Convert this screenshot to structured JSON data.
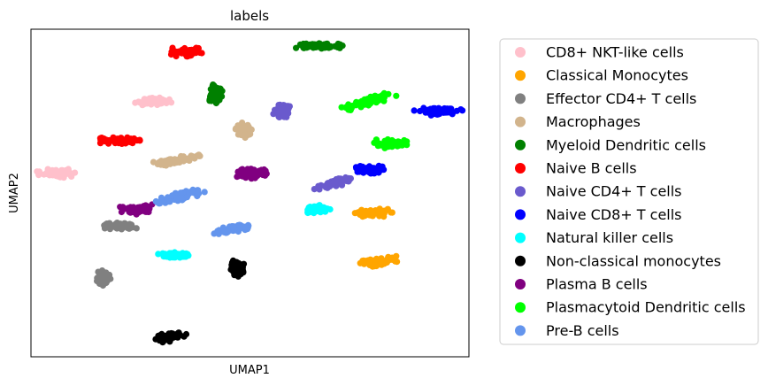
{
  "chart_data": {
    "type": "scatter",
    "title": "labels",
    "xlabel": "UMAP1",
    "ylabel": "UMAP2",
    "xlim": [
      0,
      100
    ],
    "ylim": [
      0,
      100
    ],
    "grid": false,
    "ticks_visible": false,
    "legend_position": "outside-right",
    "series": [
      {
        "name": "CD8+ NKT-like cells",
        "color": "#ffc0cb",
        "clusters": [
          {
            "x": 28,
            "y": 78,
            "sx": 4.2,
            "sy": 1.2,
            "rot": 0
          },
          {
            "x": 6,
            "y": 56,
            "sx": 4.6,
            "sy": 1.3,
            "rot": 0
          }
        ]
      },
      {
        "name": "Classical Monocytes",
        "color": "#ffa500",
        "clusters": [
          {
            "x": 78.5,
            "y": 44,
            "sx": 4.5,
            "sy": 1.2,
            "rot": 0
          },
          {
            "x": 79,
            "y": 29,
            "sx": 5,
            "sy": 1.4,
            "rot": -5
          }
        ]
      },
      {
        "name": "Effector CD4+ T cells",
        "color": "#808080",
        "clusters": [
          {
            "x": 19.5,
            "y": 40,
            "sx": 4.6,
            "sy": 1.2,
            "rot": 0
          },
          {
            "x": 16.5,
            "y": 24,
            "sx": 1.6,
            "sy": 2.6,
            "rot": 20
          }
        ]
      },
      {
        "name": "Macrophages",
        "color": "#d2b48c",
        "clusters": [
          {
            "x": 48.5,
            "y": 69,
            "sx": 1.8,
            "sy": 2.3,
            "rot": 15
          },
          {
            "x": 33.5,
            "y": 60,
            "sx": 5.5,
            "sy": 1.3,
            "rot": -10
          }
        ]
      },
      {
        "name": "Myeloid Dendritic cells",
        "color": "#008000",
        "clusters": [
          {
            "x": 66,
            "y": 95,
            "sx": 6.5,
            "sy": 1.1,
            "rot": 0
          },
          {
            "x": 42,
            "y": 80,
            "sx": 1.6,
            "sy": 3.2,
            "rot": 20
          }
        ]
      },
      {
        "name": "Naive B cells",
        "color": "#ff0000",
        "clusters": [
          {
            "x": 35.5,
            "y": 93,
            "sx": 4.3,
            "sy": 1.3,
            "rot": 0
          },
          {
            "x": 20.5,
            "y": 66,
            "sx": 5,
            "sy": 1.1,
            "rot": 0
          }
        ]
      },
      {
        "name": "Naive CD4+ T cells",
        "color": "#6a5acd",
        "clusters": [
          {
            "x": 57.5,
            "y": 75,
            "sx": 1.8,
            "sy": 2.5,
            "rot": 20
          },
          {
            "x": 69,
            "y": 53,
            "sx": 4.5,
            "sy": 1.3,
            "rot": -15
          }
        ]
      },
      {
        "name": "Naive CD8+ T cells",
        "color": "#0000ff",
        "clusters": [
          {
            "x": 93,
            "y": 75,
            "sx": 5.5,
            "sy": 1.3,
            "rot": 0
          },
          {
            "x": 77,
            "y": 57,
            "sx": 3.8,
            "sy": 1.4,
            "rot": 0
          }
        ]
      },
      {
        "name": "Natural killer  cells",
        "color": "#00ffff",
        "clusters": [
          {
            "x": 65.5,
            "y": 45,
            "sx": 2.8,
            "sy": 1.3,
            "rot": 0
          },
          {
            "x": 33,
            "y": 31,
            "sx": 4.3,
            "sy": 1,
            "rot": 0
          }
        ]
      },
      {
        "name": "Non-classical monocytes",
        "color": "#000000",
        "clusters": [
          {
            "x": 47,
            "y": 27,
            "sx": 1.8,
            "sy": 2.5,
            "rot": 15
          },
          {
            "x": 31.5,
            "y": 6,
            "sx": 4,
            "sy": 1.4,
            "rot": -10
          }
        ]
      },
      {
        "name": "Plasma B cells",
        "color": "#800080",
        "clusters": [
          {
            "x": 50.5,
            "y": 56,
            "sx": 4,
            "sy": 1.7,
            "rot": 0
          },
          {
            "x": 24,
            "y": 45,
            "sx": 3.7,
            "sy": 1.5,
            "rot": 0
          }
        ]
      },
      {
        "name": "Plasmacytoid Dendritic cells",
        "color": "#00ff00",
        "clusters": [
          {
            "x": 77,
            "y": 78,
            "sx": 6.5,
            "sy": 1.3,
            "rot": -15
          },
          {
            "x": 82,
            "y": 65,
            "sx": 3.8,
            "sy": 1.4,
            "rot": 0
          }
        ]
      },
      {
        "name": "Pre-B cells",
        "color": "#6495ed",
        "clusters": [
          {
            "x": 34,
            "y": 49,
            "sx": 5.7,
            "sy": 1.3,
            "rot": -15
          },
          {
            "x": 46.5,
            "y": 39,
            "sx": 4.8,
            "sy": 1.3,
            "rot": -10
          }
        ]
      }
    ]
  }
}
